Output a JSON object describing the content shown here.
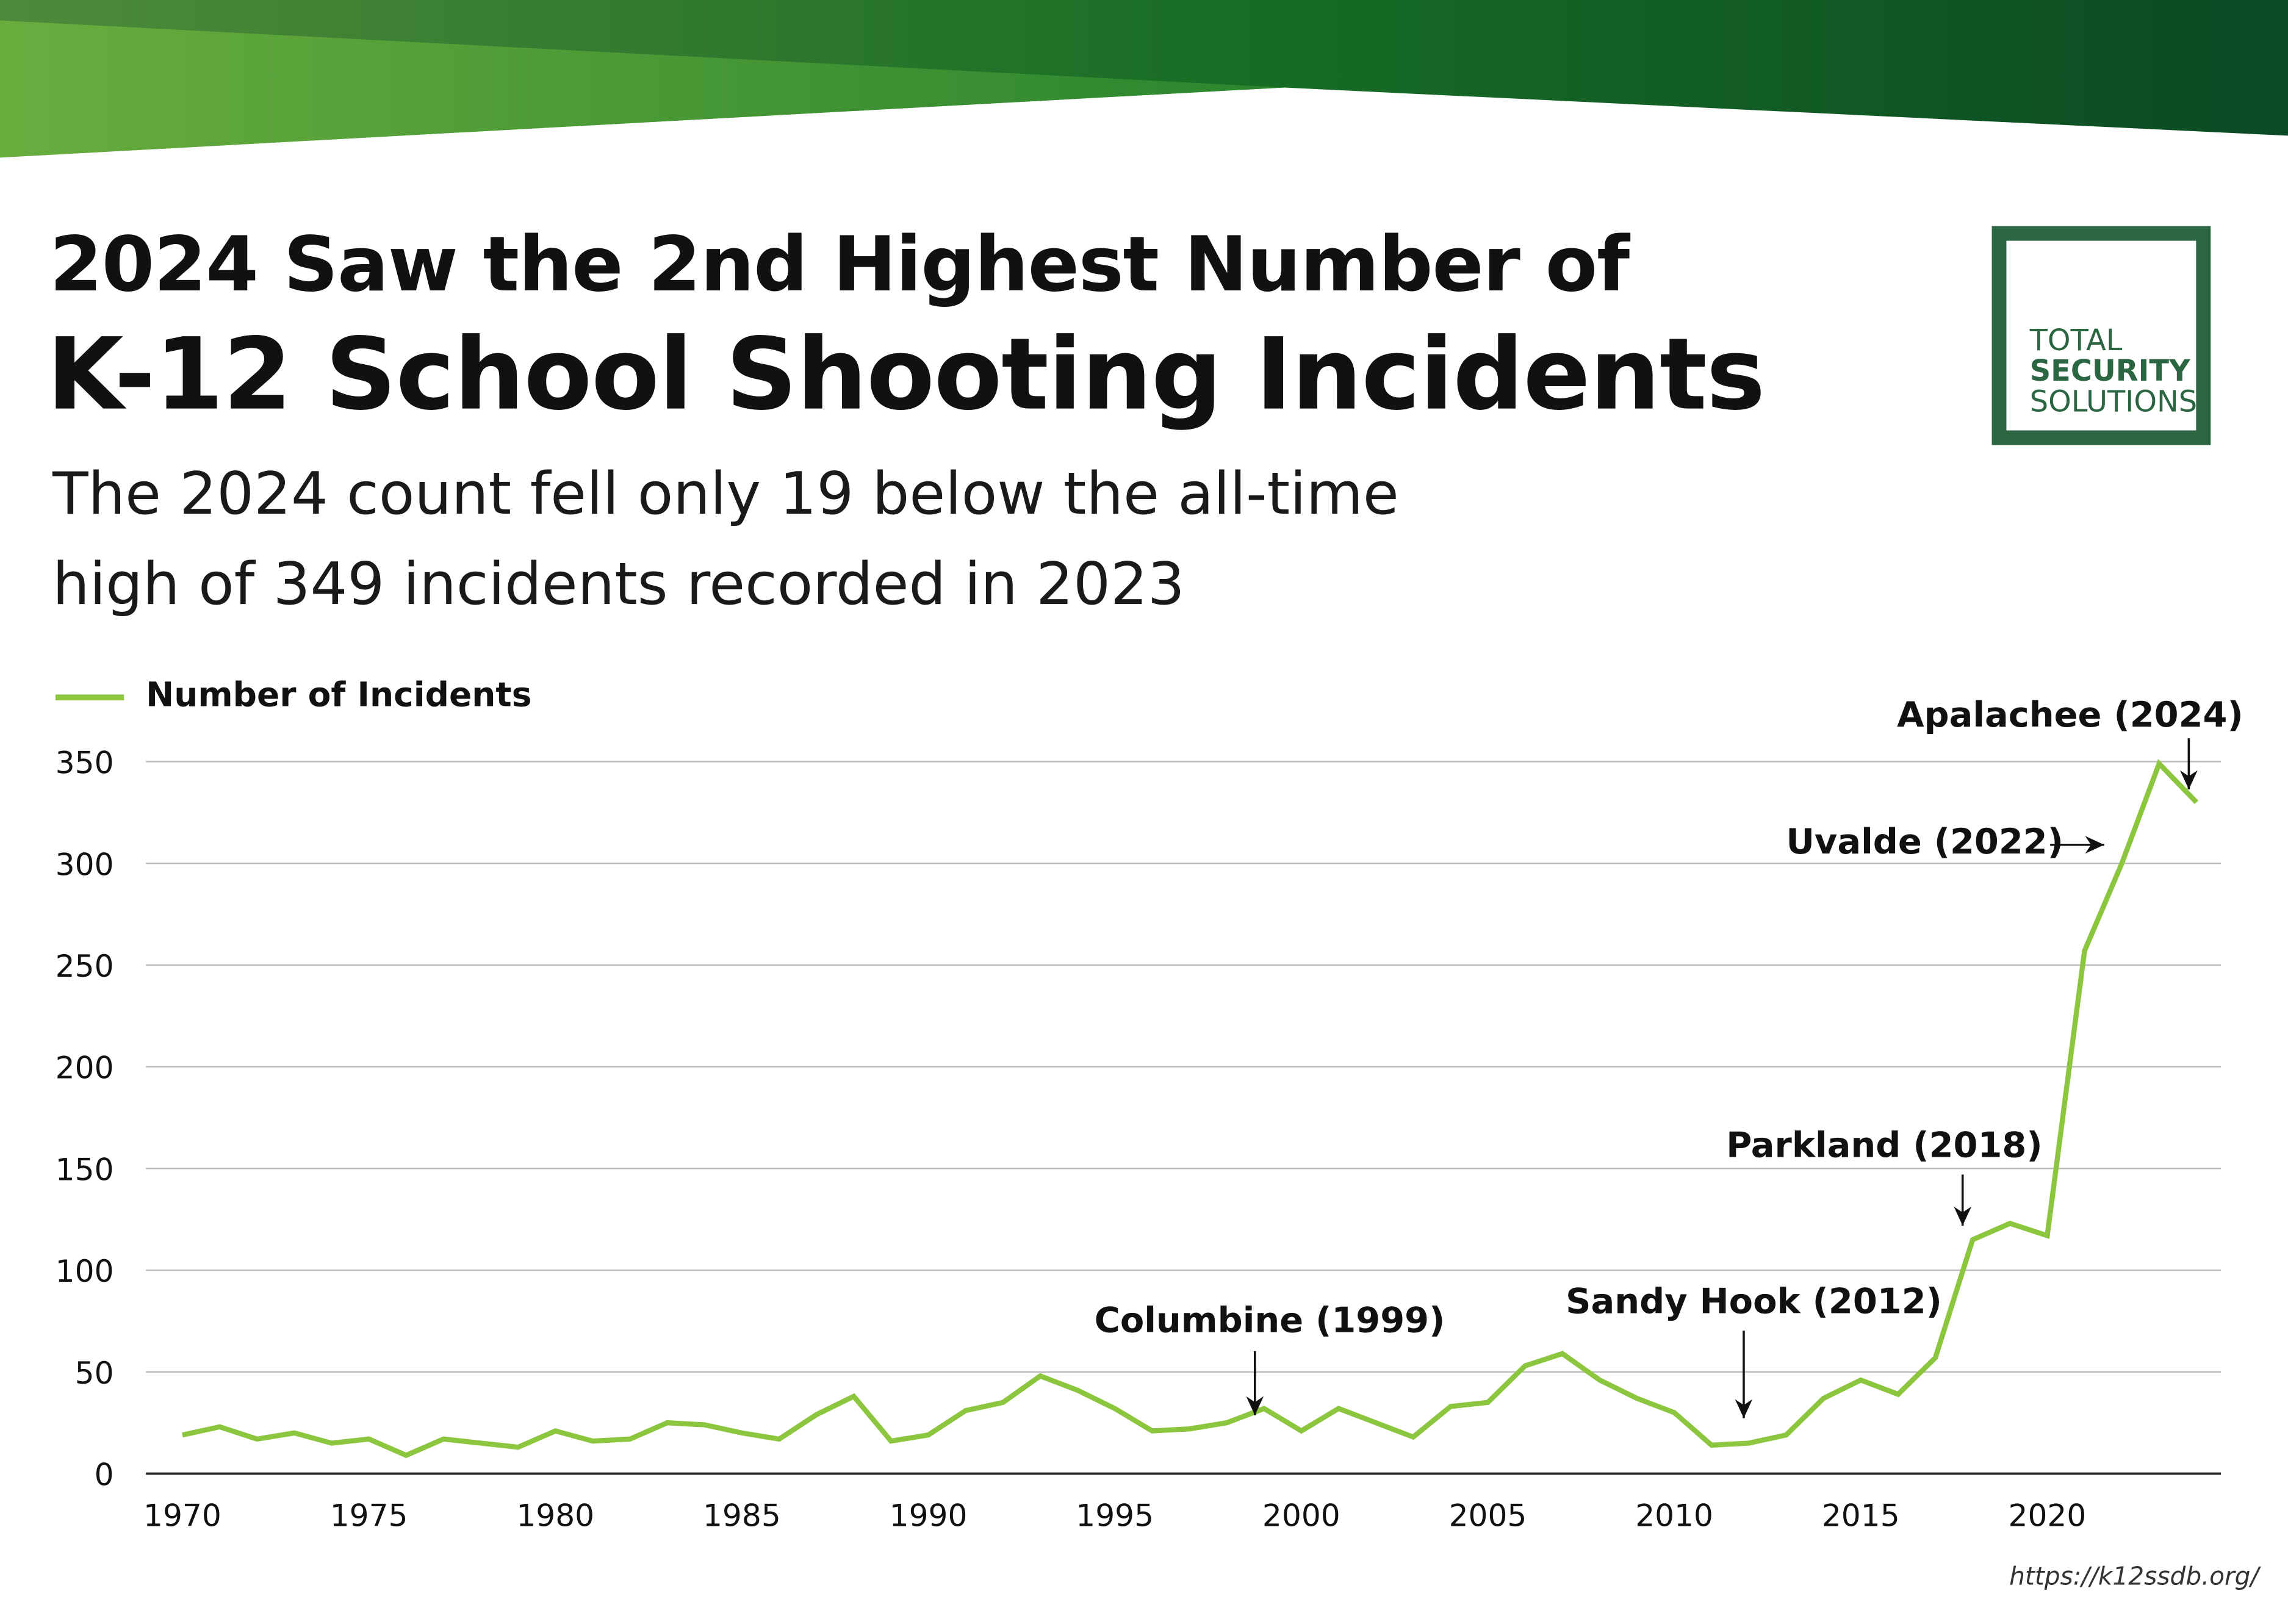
{
  "header": {
    "title_line1": "2024 Saw the 2nd Highest Number of",
    "title_line2": "K-12 School Shooting Incidents",
    "subtitle_line1": "The 2024 count fell only 19 below the all-time",
    "subtitle_line2": "high of 349 incidents recorded in 2023"
  },
  "logo": {
    "line1": "TOTAL",
    "line2": "SECURITY",
    "line3": "SOLUTIONS"
  },
  "source": "https://k12ssdb.org/",
  "colors": {
    "line": "#8cc63f",
    "brand_dark": "#0b4a24",
    "brand_light": "#6db33f",
    "logo": "#2a6641"
  },
  "chart_data": {
    "type": "line",
    "title": "",
    "xlabel": "",
    "ylabel": "",
    "legend_position": "top-left",
    "grid": true,
    "xlim": [
      1970,
      2024
    ],
    "ylim": [
      0,
      350
    ],
    "x_ticks": [
      1970,
      1975,
      1980,
      1985,
      1990,
      1995,
      2000,
      2005,
      2010,
      2015,
      2020
    ],
    "y_ticks": [
      0,
      50,
      100,
      150,
      200,
      250,
      300,
      350
    ],
    "x": [
      1970,
      1971,
      1972,
      1973,
      1974,
      1975,
      1976,
      1977,
      1978,
      1979,
      1980,
      1981,
      1982,
      1983,
      1984,
      1985,
      1986,
      1987,
      1988,
      1989,
      1990,
      1991,
      1992,
      1993,
      1994,
      1995,
      1996,
      1997,
      1998,
      1999,
      2000,
      2001,
      2002,
      2003,
      2004,
      2005,
      2006,
      2007,
      2008,
      2009,
      2010,
      2011,
      2012,
      2013,
      2014,
      2015,
      2016,
      2017,
      2018,
      2019,
      2020,
      2021,
      2022,
      2023,
      2024
    ],
    "series": [
      {
        "name": "Number of Incidents",
        "values": [
          19,
          23,
          17,
          20,
          15,
          17,
          9,
          17,
          15,
          13,
          21,
          16,
          17,
          25,
          24,
          20,
          17,
          29,
          38,
          16,
          19,
          31,
          35,
          48,
          41,
          32,
          21,
          22,
          25,
          32,
          21,
          32,
          25,
          18,
          33,
          35,
          53,
          59,
          46,
          37,
          30,
          14,
          15,
          19,
          37,
          46,
          39,
          57,
          115,
          123,
          117,
          257,
          300,
          349,
          330
        ]
      }
    ],
    "annotations": [
      {
        "label": "Columbine (1999)",
        "year": 1999
      },
      {
        "label": "Sandy Hook (2012)",
        "year": 2012
      },
      {
        "label": "Parkland (2018)",
        "year": 2018
      },
      {
        "label": "Uvalde (2022)",
        "year": 2022
      },
      {
        "label": "Apalachee (2024)",
        "year": 2024
      }
    ]
  }
}
